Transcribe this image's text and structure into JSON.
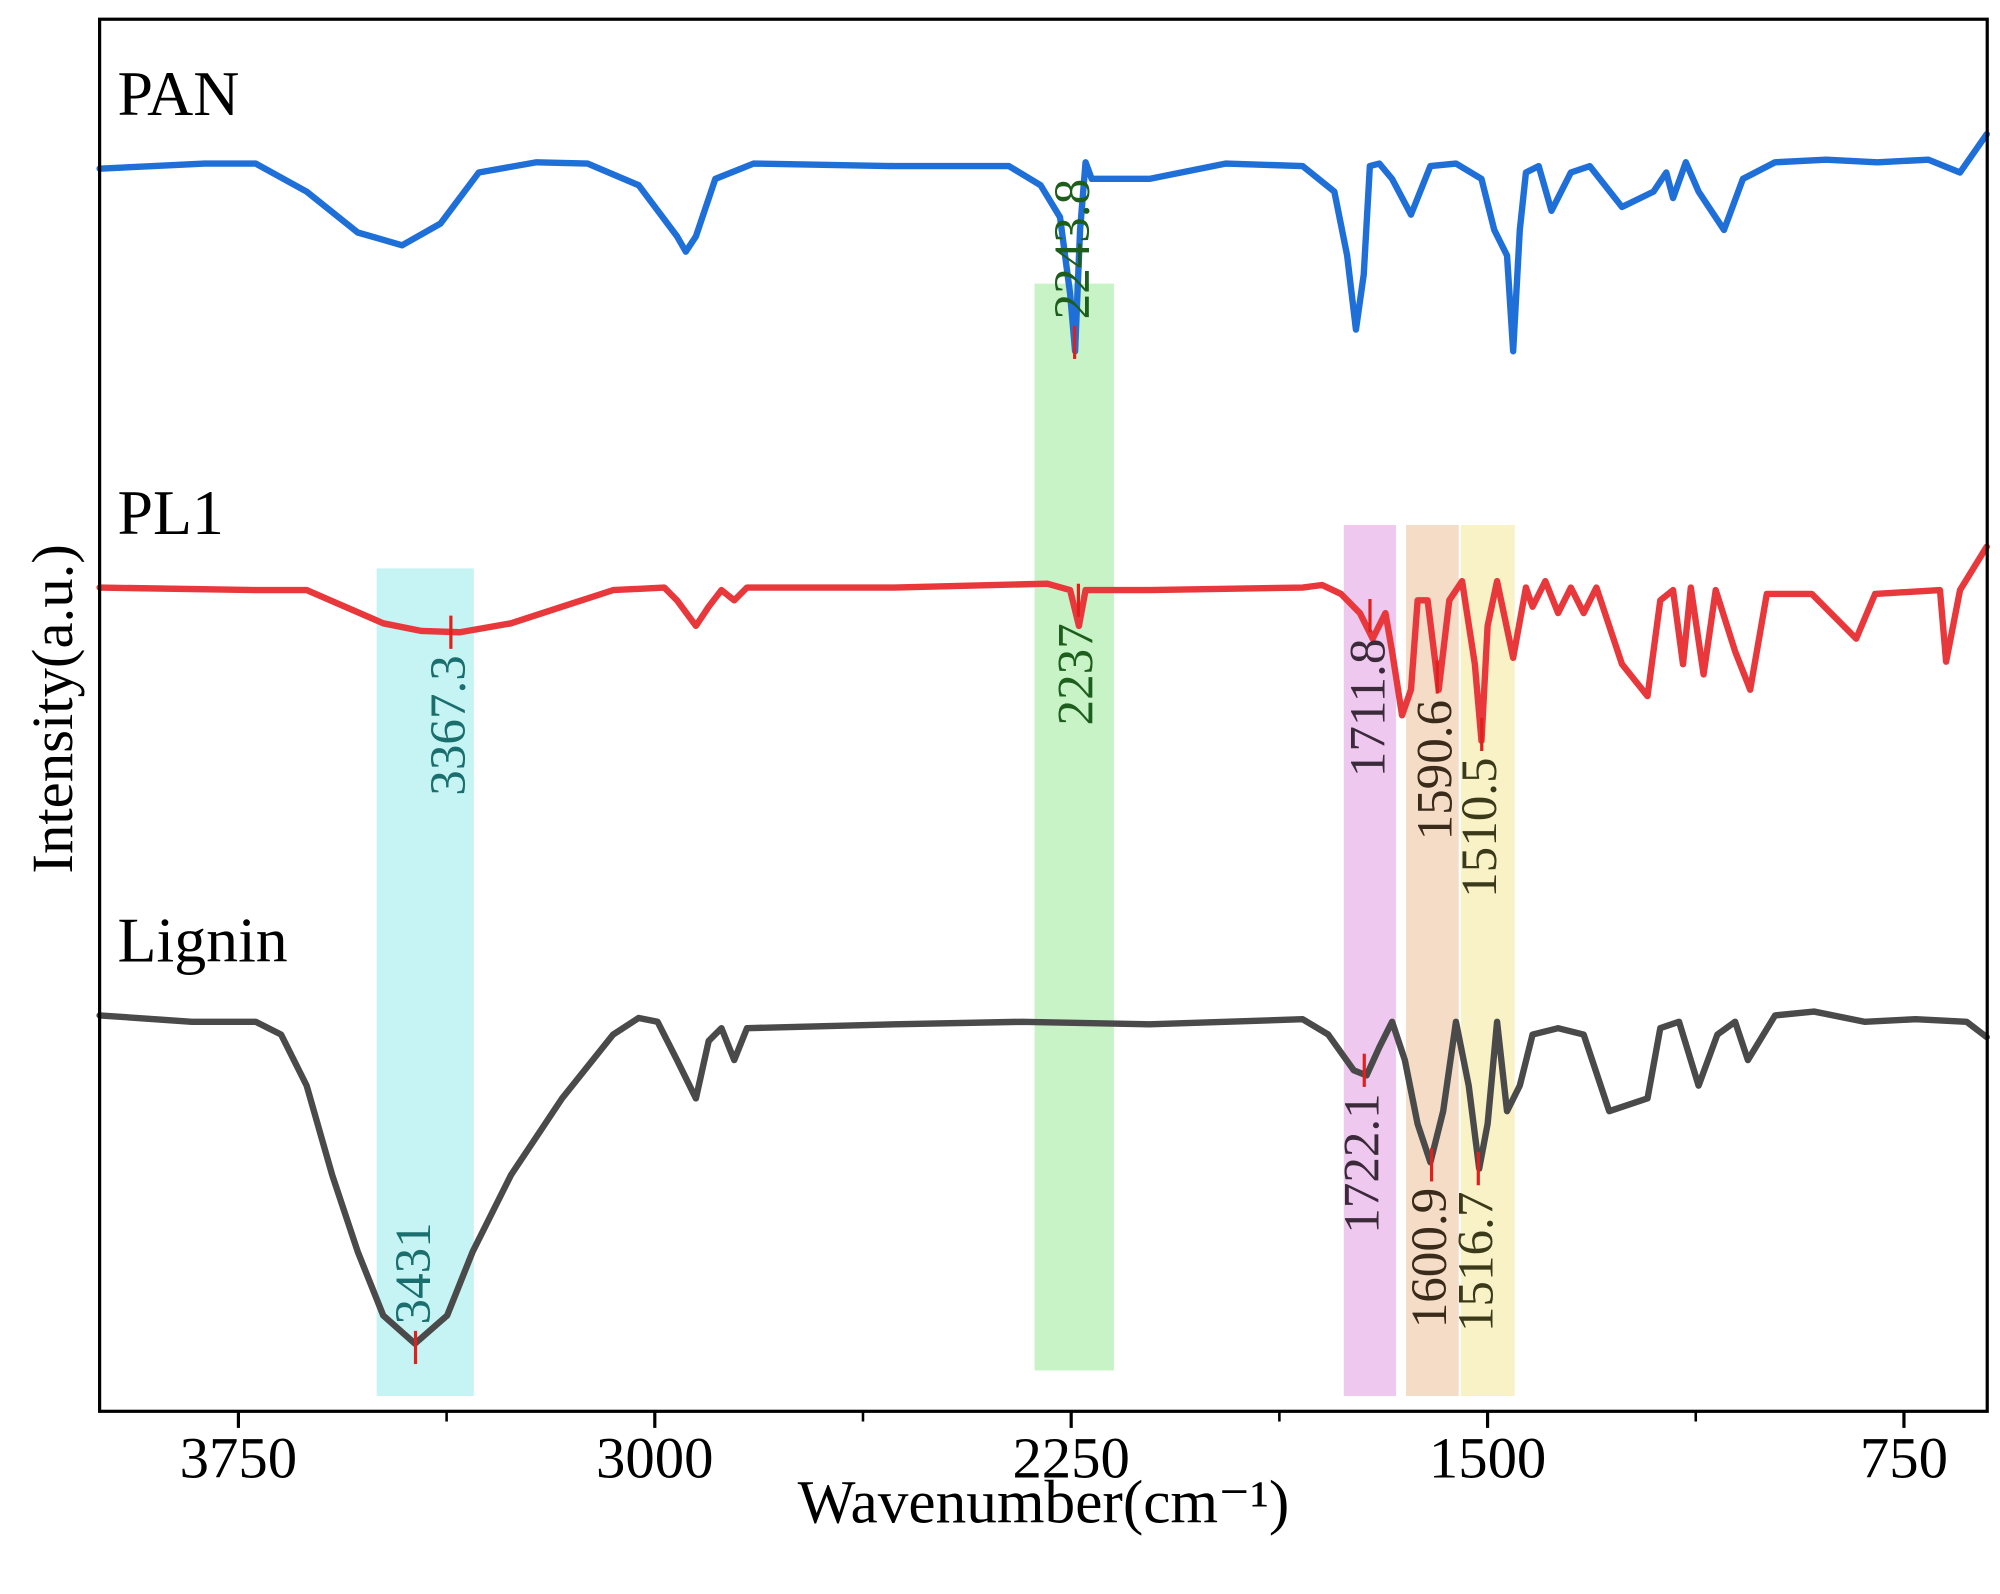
{
  "chart_data": {
    "type": "line",
    "x_label": "Wavenumber(cm⁻¹)",
    "y_label": "Intensity(a.u.)",
    "xlim": [
      4000,
      600
    ],
    "ylim": [
      0,
      1090
    ],
    "xticks": [
      3750,
      3000,
      2250,
      1500,
      750
    ],
    "minor_xticks": [
      3375,
      2625,
      1875,
      1125
    ],
    "series": [
      {
        "name": "PAN",
        "color": "#1f6fd8",
        "x": [
          4000,
          3903,
          3811,
          3719,
          3627,
          3535,
          3455,
          3386,
          3317,
          3213,
          3121,
          3029,
          2960,
          2944,
          2926,
          2891,
          2822,
          2569,
          2362,
          2305,
          2270,
          2252,
          2243,
          2234,
          2224,
          2213,
          2109,
          1971,
          1833,
          1776,
          1753,
          1737,
          1723,
          1712,
          1695,
          1672,
          1638,
          1603,
          1557,
          1511,
          1488,
          1465,
          1454,
          1442,
          1431,
          1408,
          1385,
          1350,
          1316,
          1258,
          1201,
          1178,
          1166,
          1143,
          1120,
          1074,
          1040,
          982,
          890,
          798,
          706,
          649,
          601
        ],
        "values": [
          973,
          975,
          977,
          977,
          955,
          923,
          913,
          930,
          970,
          978,
          977,
          960,
          920,
          908,
          920,
          965,
          977,
          975,
          975,
          960,
          935,
          875,
          830,
          925,
          978,
          965,
          965,
          977,
          975,
          955,
          905,
          847,
          890,
          975,
          977,
          965,
          937,
          975,
          977,
          965,
          925,
          905,
          830,
          925,
          970,
          975,
          940,
          970,
          975,
          943,
          955,
          970,
          950,
          978,
          955,
          925,
          965,
          978,
          980,
          978,
          980,
          970,
          1000
        ]
      },
      {
        "name": "PL1",
        "color": "#e8383b",
        "x": [
          4000,
          3719,
          3627,
          3558,
          3489,
          3420,
          3351,
          3259,
          3167,
          3075,
          2983,
          2960,
          2926,
          2903,
          2880,
          2857,
          2834,
          2569,
          2293,
          2252,
          2236,
          2224,
          2109,
          1833,
          1798,
          1764,
          1730,
          1707,
          1684,
          1672,
          1654,
          1638,
          1626,
          1608,
          1588,
          1569,
          1546,
          1523,
          1511,
          1500,
          1483,
          1454,
          1431,
          1419,
          1396,
          1373,
          1350,
          1327,
          1304,
          1258,
          1212,
          1189,
          1166,
          1148,
          1134,
          1111,
          1089,
          1054,
          1027,
          997,
          916,
          836,
          802,
          685,
          674,
          649,
          601
        ],
        "values": [
          645,
          643,
          643,
          630,
          617,
          611,
          610,
          617,
          630,
          643,
          645,
          635,
          615,
          630,
          643,
          635,
          645,
          645,
          648,
          643,
          615,
          643,
          643,
          645,
          647,
          640,
          625,
          605,
          625,
          595,
          545,
          565,
          635,
          635,
          565,
          635,
          650,
          585,
          525,
          615,
          650,
          590,
          645,
          630,
          650,
          625,
          645,
          625,
          645,
          585,
          560,
          635,
          643,
          585,
          645,
          577,
          643,
          595,
          565,
          640,
          640,
          605,
          640,
          643,
          587,
          643,
          677
        ]
      },
      {
        "name": "Lignin",
        "color": "#4a4a4a",
        "x": [
          4000,
          3834,
          3719,
          3673,
          3627,
          3581,
          3535,
          3489,
          3432,
          3374,
          3328,
          3259,
          3167,
          3075,
          3029,
          2995,
          2960,
          2926,
          2903,
          2880,
          2857,
          2834,
          2569,
          2339,
          2109,
          1833,
          1787,
          1741,
          1718,
          1695,
          1672,
          1649,
          1626,
          1603,
          1580,
          1557,
          1534,
          1515,
          1500,
          1483,
          1465,
          1442,
          1419,
          1373,
          1327,
          1281,
          1212,
          1189,
          1155,
          1120,
          1086,
          1054,
          1031,
          982,
          912,
          821,
          729,
          637,
          601
        ],
        "values": [
          310,
          305,
          305,
          295,
          255,
          185,
          125,
          75,
          53,
          75,
          125,
          185,
          245,
          295,
          308,
          305,
          275,
          245,
          290,
          300,
          275,
          300,
          303,
          305,
          303,
          307,
          295,
          267,
          263,
          285,
          305,
          275,
          225,
          195,
          235,
          305,
          255,
          190,
          225,
          305,
          235,
          255,
          295,
          300,
          295,
          235,
          245,
          300,
          305,
          255,
          295,
          305,
          275,
          310,
          313,
          305,
          307,
          305,
          293
        ]
      }
    ],
    "bands": [
      {
        "from": 3501,
        "to": 3326,
        "y0": 12,
        "y1": 660,
        "color": "#c6f3f3"
      },
      {
        "from": 2316,
        "to": 2173,
        "y0": 32,
        "y1": 883,
        "color": "#c8f3c6"
      },
      {
        "from": 1759,
        "to": 1665,
        "y0": 12,
        "y1": 694,
        "color": "#efc8f0"
      },
      {
        "from": 1647,
        "to": 1552,
        "y0": 12,
        "y1": 694,
        "color": "#f5dcc6"
      },
      {
        "from": 1548,
        "to": 1451,
        "y0": 12,
        "y1": 694,
        "color": "#f8f2c6"
      }
    ],
    "peaks": [
      {
        "x": 2243.8,
        "y": 837,
        "side": "above",
        "color": "#1d5e1d"
      },
      {
        "x": 3367.3,
        "y": 610,
        "side": "below",
        "color": "#1a6e6e"
      },
      {
        "x": 2237,
        "y": 635,
        "side": "below",
        "color": "#1d5e1d"
      },
      {
        "x": 1711.8,
        "y": 623,
        "side": "below",
        "color": "#3a2a3a"
      },
      {
        "x": 1590.6,
        "y": 575,
        "side": "below",
        "color": "#3a2a1a"
      },
      {
        "x": 1510.5,
        "y": 530,
        "side": "below",
        "color": "#3a3a1a"
      },
      {
        "x": 3431,
        "y": 50,
        "side": "above",
        "color": "#1a6e6e"
      },
      {
        "x": 1722.1,
        "y": 267,
        "side": "below",
        "color": "#3a2a3a"
      },
      {
        "x": 1600.9,
        "y": 193,
        "side": "below",
        "color": "#3a2a1a"
      },
      {
        "x": 1516.7,
        "y": 190,
        "side": "below",
        "color": "#3a3a1a"
      }
    ],
    "peak_tick_color": "#e0201c"
  }
}
